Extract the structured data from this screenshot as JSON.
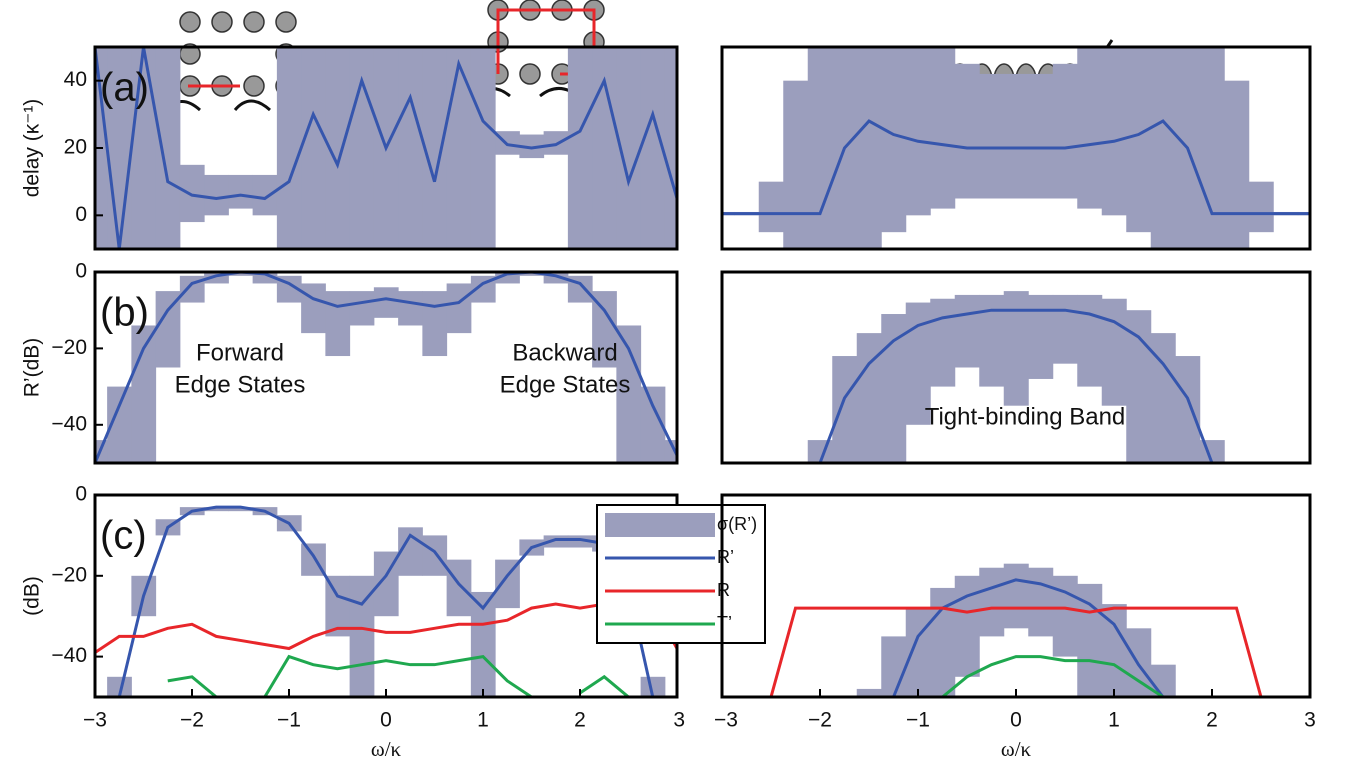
{
  "chart_data": [
    {
      "type": "line",
      "panel_label": "(a)",
      "ylabel": "delay (κ⁻¹)",
      "x": [
        -3,
        -2.75,
        -2.5,
        -2.25,
        -2,
        -1.75,
        -1.5,
        -1.25,
        -1,
        -0.75,
        -0.5,
        -0.25,
        0,
        0.25,
        0.5,
        0.75,
        1,
        1.25,
        1.5,
        1.75,
        2,
        2.25,
        2.5,
        2.75,
        3
      ],
      "xlim": [
        -3,
        3
      ],
      "ylim": [
        -10,
        50
      ],
      "yticks": [
        0,
        20,
        40
      ],
      "series": [
        {
          "color": "#9b9ebd",
          "upper": [
            50,
            50,
            50,
            50,
            15,
            12,
            12,
            12,
            50,
            50,
            50,
            50,
            50,
            50,
            50,
            50,
            50,
            25,
            24,
            25,
            50,
            50,
            50,
            50,
            50
          ],
          "lower": [
            -10,
            -10,
            -10,
            -10,
            -2,
            0,
            2,
            0,
            -10,
            -10,
            -10,
            -10,
            -10,
            -10,
            -10,
            -10,
            -10,
            18,
            17,
            18,
            -10,
            -10,
            -10,
            -10,
            -10
          ]
        },
        {
          "color": "#3656ad",
          "values": [
            50,
            -10,
            50,
            10,
            6,
            5,
            6,
            5,
            10,
            30,
            15,
            40,
            20,
            35,
            10,
            45,
            28,
            21,
            20,
            21,
            25,
            40,
            10,
            30,
            5
          ]
        }
      ]
    },
    {
      "type": "line",
      "x": [
        -3,
        -2.75,
        -2.5,
        -2.25,
        -2,
        -1.75,
        -1.5,
        -1.25,
        -1,
        -0.75,
        -0.5,
        -0.25,
        0,
        0.25,
        0.5,
        0.75,
        1,
        1.25,
        1.5,
        1.75,
        2,
        2.25,
        2.5,
        2.75,
        3
      ],
      "xlim": [
        -3,
        3
      ],
      "ylim": [
        -10,
        50
      ],
      "series": [
        {
          "color": "#9b9ebd",
          "upper": [
            1,
            1,
            10,
            40,
            50,
            50,
            50,
            50,
            50,
            50,
            45,
            42,
            42,
            42,
            45,
            50,
            50,
            50,
            50,
            50,
            50,
            40,
            10,
            1,
            1
          ],
          "lower": [
            0,
            0,
            -5,
            -10,
            -10,
            -10,
            -10,
            -5,
            0,
            2,
            5,
            5,
            5,
            5,
            5,
            2,
            0,
            -5,
            -10,
            -10,
            -10,
            -10,
            -5,
            0,
            0
          ]
        },
        {
          "color": "#3656ad",
          "values": [
            0.5,
            0.5,
            0.5,
            0.5,
            0.5,
            20,
            28,
            24,
            22,
            21,
            20,
            20,
            20,
            20,
            20,
            21,
            22,
            24,
            28,
            20,
            0.5,
            0.5,
            0.5,
            0.5,
            0.5
          ]
        }
      ]
    },
    {
      "type": "line",
      "panel_label": "(b)",
      "ylabel": "R’(dB)",
      "annotations": [
        [
          "Forward",
          "Edge States"
        ],
        [
          "Backward",
          "Edge States"
        ]
      ],
      "x": [
        -3,
        -2.75,
        -2.5,
        -2.25,
        -2,
        -1.75,
        -1.5,
        -1.25,
        -1,
        -0.75,
        -0.5,
        -0.25,
        0,
        0.25,
        0.5,
        0.75,
        1,
        1.25,
        1.5,
        1.75,
        2,
        2.25,
        2.5,
        2.75,
        3
      ],
      "xlim": [
        -3,
        3
      ],
      "ylim": [
        -50,
        0
      ],
      "yticks": [
        {
          "value": -40,
          "label": "−40"
        },
        {
          "value": -20,
          "label": "−20"
        },
        0
      ],
      "series": [
        {
          "color": "#9b9ebd",
          "upper": [
            -44,
            -30,
            -14,
            -5,
            -1,
            0,
            0,
            0,
            -1,
            -3,
            -5,
            -5,
            -4,
            -5,
            -5,
            -3,
            -1,
            0,
            0,
            0,
            -1,
            -5,
            -14,
            -30,
            -44
          ],
          "lower": [
            -50,
            -50,
            -50,
            -25,
            -8,
            -3,
            -1,
            -3,
            -8,
            -16,
            -22,
            -14,
            -12,
            -14,
            -22,
            -16,
            -8,
            -3,
            -1,
            -3,
            -8,
            -25,
            -50,
            -50,
            -50
          ]
        },
        {
          "color": "#3656ad",
          "values": [
            -50,
            -35,
            -20,
            -10,
            -3,
            -1,
            0,
            -0.5,
            -3,
            -7,
            -9,
            -8,
            -7,
            -8,
            -9,
            -8,
            -3,
            -0.5,
            0,
            -1,
            -3,
            -10,
            -20,
            -35,
            -48
          ]
        }
      ]
    },
    {
      "type": "line",
      "annotations": [
        [
          "Tight-binding Band"
        ]
      ],
      "x": [
        -3,
        -2.75,
        -2.5,
        -2.25,
        -2,
        -1.75,
        -1.5,
        -1.25,
        -1,
        -0.75,
        -0.5,
        -0.25,
        0,
        0.25,
        0.5,
        0.75,
        1,
        1.25,
        1.5,
        1.75,
        2,
        2.25,
        2.5,
        2.75,
        3
      ],
      "xlim": [
        -3,
        3
      ],
      "ylim": [
        -50,
        0
      ],
      "series": [
        {
          "color": "#9b9ebd",
          "upper": [
            null,
            null,
            null,
            null,
            -44,
            -22,
            -16,
            -11,
            -8,
            -7,
            -6,
            -6,
            -5,
            -6,
            -6,
            -6,
            -7,
            -10,
            -16,
            -22,
            -44,
            null,
            null,
            null,
            null
          ],
          "lower": [
            null,
            null,
            null,
            null,
            -50,
            -50,
            -50,
            -50,
            -40,
            -30,
            -25,
            -30,
            -35,
            -28,
            -24,
            -30,
            -35,
            -50,
            -50,
            -50,
            -50,
            null,
            null,
            null,
            null
          ]
        },
        {
          "color": "#3656ad",
          "values": [
            null,
            null,
            null,
            null,
            -50,
            -33,
            -24,
            -18,
            -14,
            -12,
            -11,
            -10,
            -10,
            -10,
            -10,
            -11,
            -13,
            -17,
            -24,
            -33,
            -50,
            null,
            null,
            null,
            null
          ]
        }
      ]
    },
    {
      "type": "line",
      "panel_label": "(c)",
      "ylabel": "(dB)",
      "xlabel": "ω/κ",
      "legend": "right",
      "x": [
        -3,
        -2.75,
        -2.5,
        -2.25,
        -2,
        -1.75,
        -1.5,
        -1.25,
        -1,
        -0.75,
        -0.5,
        -0.25,
        0,
        0.25,
        0.5,
        0.75,
        1,
        1.25,
        1.5,
        1.75,
        2,
        2.25,
        2.5,
        2.75,
        3
      ],
      "xlim": [
        -3,
        3
      ],
      "ylim": [
        -50,
        0
      ],
      "yticks": [
        {
          "value": -40,
          "label": "−40"
        },
        {
          "value": -20,
          "label": "−20"
        },
        0
      ],
      "xticks": [
        {
          "value": -3,
          "label": "−3"
        },
        {
          "value": -2,
          "label": "−2"
        },
        {
          "value": -1,
          "label": "−1"
        },
        0,
        1,
        2,
        3
      ],
      "series": [
        {
          "name": "σ(R’)",
          "color": "#9b9ebd",
          "upper": [
            null,
            -45,
            -20,
            -6,
            -3,
            -3,
            -3,
            -3,
            -5,
            -12,
            -20,
            -20,
            -14,
            -8,
            -10,
            -16,
            -24,
            -16,
            -11,
            -10,
            -10,
            -10,
            -18,
            -45,
            null
          ],
          "lower": [
            null,
            -50,
            -30,
            -10,
            -5,
            -4,
            -4,
            -5,
            -9,
            -20,
            -35,
            -50,
            -30,
            -20,
            -20,
            -30,
            -50,
            -28,
            -15,
            -13,
            -13,
            -14,
            -30,
            -50,
            null
          ]
        },
        {
          "name": "R’",
          "color": "#3656ad",
          "values": [
            null,
            -50,
            -25,
            -8,
            -4,
            -3,
            -3,
            -4,
            -7,
            -15,
            -25,
            -27,
            -20,
            -10,
            -14,
            -22,
            -28,
            -20,
            -13,
            -11,
            -11,
            -12,
            -23,
            -50,
            null
          ]
        },
        {
          "name": "R",
          "color": "#e8262a",
          "values": [
            -39,
            -35,
            -35,
            -33,
            -32,
            -35,
            -36,
            -37,
            -38,
            -35,
            -33,
            -33,
            -34,
            -34,
            -33,
            -32,
            -32,
            -31,
            -28,
            -27,
            -28,
            -27,
            -27,
            -27,
            -38
          ]
        },
        {
          "name": "T’",
          "color": "#1fa84f",
          "values": [
            null,
            null,
            null,
            -46,
            -45,
            -50,
            null,
            -50,
            -40,
            -42,
            -43,
            -42,
            -41,
            -42,
            -42,
            -41,
            -40,
            -46,
            -50,
            null,
            -49,
            -45,
            -50,
            null,
            null
          ]
        }
      ]
    },
    {
      "type": "line",
      "xlabel": "ω/κ",
      "x": [
        -3,
        -2.75,
        -2.5,
        -2.25,
        -2,
        -1.75,
        -1.5,
        -1.25,
        -1,
        -0.75,
        -0.5,
        -0.25,
        0,
        0.25,
        0.5,
        0.75,
        1,
        1.25,
        1.5,
        1.75,
        2,
        2.25,
        2.5,
        2.75,
        3
      ],
      "xlim": [
        -3,
        3
      ],
      "ylim": [
        -50,
        0
      ],
      "xticks": [
        {
          "value": -3,
          "label": "−3"
        },
        {
          "value": -2,
          "label": "−2"
        },
        {
          "value": -1,
          "label": "−1"
        },
        0,
        1,
        2,
        3
      ],
      "series": [
        {
          "color": "#9b9ebd",
          "upper": [
            null,
            null,
            null,
            null,
            null,
            null,
            -48,
            -35,
            -28,
            -23,
            -20,
            -18,
            -17,
            -18,
            -20,
            -22,
            -27,
            -33,
            -42,
            -50,
            null,
            null,
            null,
            null,
            null
          ],
          "lower": [
            null,
            null,
            null,
            null,
            null,
            null,
            -50,
            -50,
            -50,
            -50,
            -45,
            -35,
            -33,
            -35,
            -40,
            -50,
            -50,
            -50,
            -50,
            -50,
            null,
            null,
            null,
            null,
            null
          ]
        },
        {
          "color": "#3656ad",
          "values": [
            null,
            null,
            null,
            null,
            null,
            null,
            null,
            -50,
            -35,
            -28,
            -25,
            -23,
            -21,
            -22,
            -24,
            -27,
            -32,
            -42,
            -50,
            null,
            null,
            null,
            null,
            null,
            null
          ]
        },
        {
          "color": "#e8262a",
          "values": [
            null,
            null,
            -50,
            -28,
            -28,
            -28,
            -28,
            -28,
            -28,
            -28,
            -29,
            -28,
            -28,
            -28,
            -28,
            -29,
            -28,
            -28,
            -28,
            -28,
            -28,
            -28,
            -50,
            null,
            null
          ]
        },
        {
          "color": "#1fa84f",
          "values": [
            null,
            null,
            null,
            null,
            null,
            null,
            null,
            null,
            null,
            -50,
            -45,
            -42,
            -40,
            -40,
            -41,
            -41,
            -42,
            -46,
            -50,
            null,
            null,
            null,
            null,
            null,
            null
          ]
        }
      ]
    }
  ]
}
